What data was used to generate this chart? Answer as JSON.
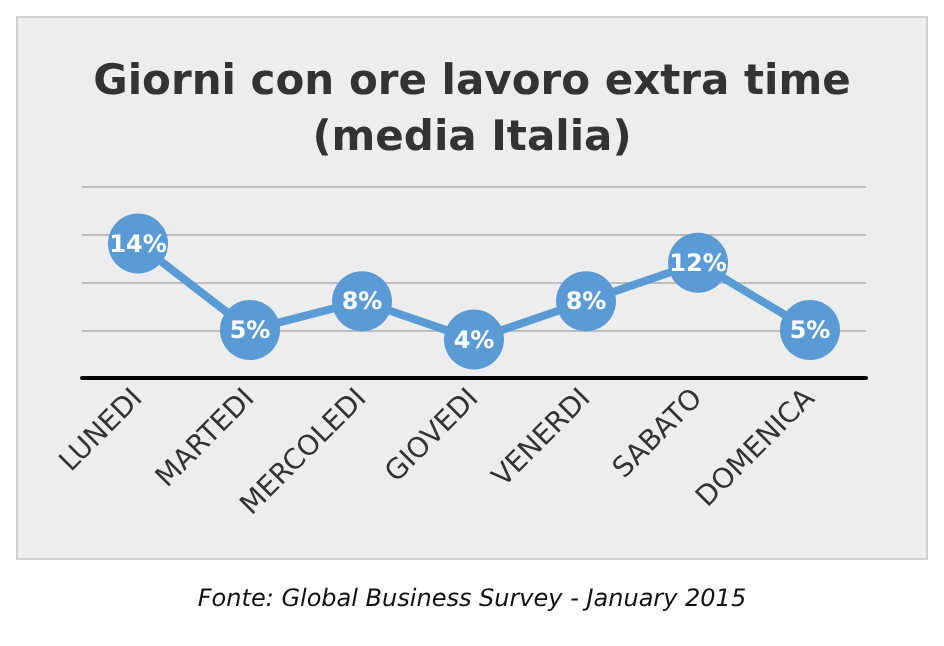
{
  "chart_data": {
    "type": "line",
    "title": "Giorni con ore lavoro extra time\n(media Italia)",
    "categories": [
      "LUNEDI",
      "MARTEDI",
      "MERCOLEDI",
      "GIOVEDI",
      "VENERDI",
      "SABATO",
      "DOMENICA"
    ],
    "series": [
      {
        "color": "#5b9bd5",
        "values": [
          14,
          5,
          8,
          4,
          8,
          12,
          5
        ],
        "value_labels": [
          "14%",
          "5%",
          "8%",
          "4%",
          "8%",
          "12%",
          "5%"
        ]
      }
    ],
    "relative": false,
    "ylim": [
      0,
      20
    ],
    "yticks": [
      {
        "value": 0,
        "label": null
      },
      {
        "value": 5,
        "label": null
      },
      {
        "value": 10,
        "label": null
      },
      {
        "value": 15,
        "label": null
      },
      {
        "value": 20,
        "label": null
      }
    ],
    "grid": "y",
    "tick_labels": "x",
    "marker": "circle",
    "line_style": "solid",
    "annotations": [
      "Fonte: Global Business Survey - January 2015"
    ]
  }
}
